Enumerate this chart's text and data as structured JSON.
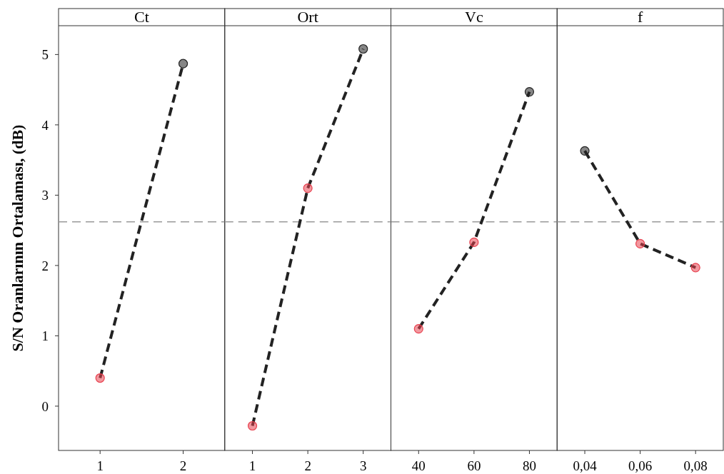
{
  "chart_data": [
    {
      "type": "line",
      "title": "Ct",
      "ylabel": "S/N Oranlarının Ortalaması, (dB)",
      "categories": [
        "1",
        "2"
      ],
      "series": [
        {
          "color": "#222222",
          "colors": [
            "#e8414f",
            "#222222"
          ],
          "values": [
            0.4,
            4.87
          ]
        }
      ],
      "ylim": [
        -0.63,
        5.41
      ],
      "yticks": [
        0,
        1,
        2,
        3,
        4,
        5
      ],
      "marker": "circle",
      "line_style": "dashed",
      "grid": false,
      "ref_lines": [
        {
          "axis": "y",
          "value": 2.62,
          "color": "#999999",
          "line_style": "dashed"
        }
      ]
    },
    {
      "type": "line",
      "title": "Ort",
      "categories": [
        "1",
        "2",
        "3"
      ],
      "series": [
        {
          "color": "#222222",
          "colors": [
            "#e8414f",
            "#e8414f",
            "#222222"
          ],
          "values": [
            -0.28,
            3.1,
            5.08
          ]
        }
      ],
      "ylim": [
        -0.63,
        5.41
      ],
      "tick_labels": "x",
      "marker": "circle",
      "line_style": "dashed",
      "grid": false,
      "ref_lines": [
        {
          "axis": "y",
          "value": 2.62,
          "color": "#999999",
          "line_style": "dashed"
        }
      ]
    },
    {
      "type": "line",
      "title": "Vc",
      "categories": [
        "40",
        "60",
        "80"
      ],
      "series": [
        {
          "color": "#222222",
          "colors": [
            "#e8414f",
            "#e8414f",
            "#222222"
          ],
          "values": [
            1.1,
            2.33,
            4.47
          ]
        }
      ],
      "ylim": [
        -0.63,
        5.41
      ],
      "tick_labels": "x",
      "marker": "circle",
      "line_style": "dashed",
      "grid": false,
      "ref_lines": [
        {
          "axis": "y",
          "value": 2.62,
          "color": "#999999",
          "line_style": "dashed"
        }
      ]
    },
    {
      "type": "line",
      "title": "f",
      "categories": [
        "0,04",
        "0,06",
        "0,08"
      ],
      "series": [
        {
          "color": "#222222",
          "colors": [
            "#222222",
            "#e8414f",
            "#e8414f"
          ],
          "values": [
            3.63,
            2.31,
            1.97
          ]
        }
      ],
      "ylim": [
        -0.63,
        5.41
      ],
      "tick_labels": "x",
      "marker": "circle",
      "line_style": "dashed",
      "grid": false,
      "ref_lines": [
        {
          "axis": "y",
          "value": 2.62,
          "color": "#999999",
          "line_style": "dashed"
        }
      ]
    }
  ]
}
